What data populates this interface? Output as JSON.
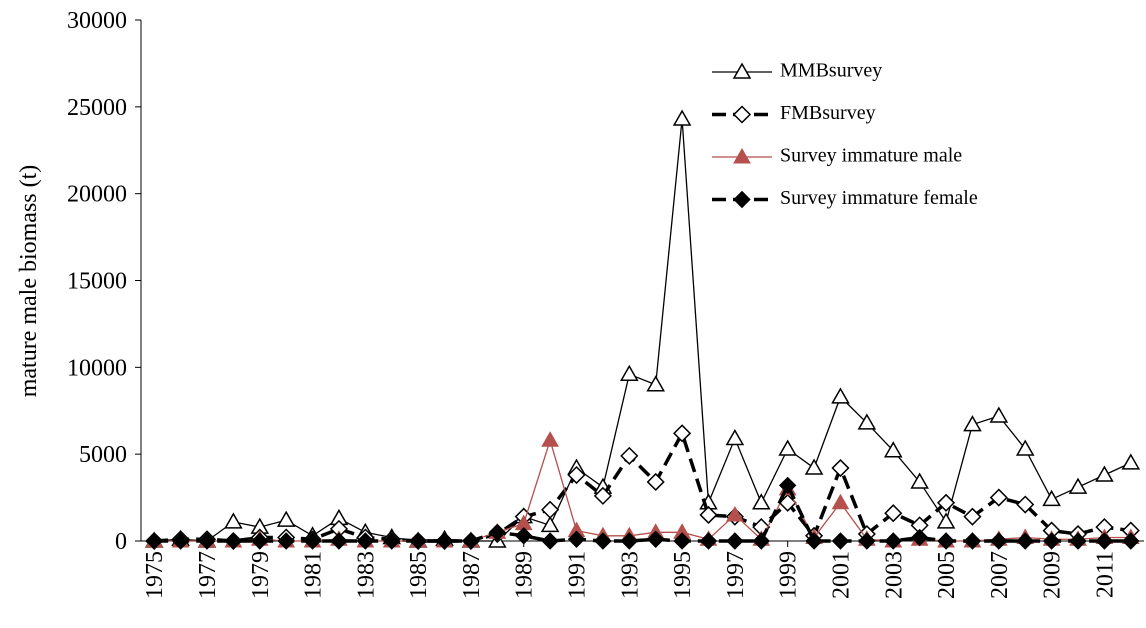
{
  "chart_data": {
    "type": "line",
    "y_label": "mature male biomass (t)",
    "x": [
      1975,
      1976,
      1977,
      1978,
      1979,
      1980,
      1981,
      1982,
      1983,
      1984,
      1985,
      1986,
      1987,
      1988,
      1989,
      1990,
      1991,
      1992,
      1993,
      1994,
      1995,
      1996,
      1997,
      1998,
      1999,
      2000,
      2001,
      2002,
      2003,
      2004,
      2005,
      2006,
      2007,
      2008,
      2009,
      2010,
      2011,
      2012
    ],
    "xlim": [
      1974.5,
      2012.5
    ],
    "xticks": [
      1975,
      1977,
      1979,
      1981,
      1983,
      1985,
      1987,
      1989,
      1991,
      1993,
      1995,
      1997,
      1999,
      2001,
      2003,
      2005,
      2007,
      2009,
      2011
    ],
    "ylim": [
      0,
      30000
    ],
    "yticks": [
      0,
      5000,
      10000,
      15000,
      20000,
      25000,
      30000
    ],
    "grid": false,
    "series": [
      {
        "name": "MMBsurvey",
        "color": "#000000",
        "marker": "triangle",
        "filled": false,
        "dash": false,
        "width": 1.3,
        "values": [
          0,
          100,
          0,
          1100,
          800,
          1200,
          300,
          1300,
          500,
          200,
          0,
          100,
          0,
          0,
          1400,
          900,
          4200,
          3100,
          9600,
          9000,
          24300,
          2200,
          5900,
          2200,
          5300,
          4200,
          8300,
          6800,
          5200,
          3400,
          1100,
          6700,
          7200,
          5300,
          2400,
          3100,
          3800,
          4500
        ]
      },
      {
        "name": "FMBsurvey",
        "color": "#000000",
        "marker": "diamond",
        "filled": false,
        "dash": true,
        "width": 3.5,
        "values": [
          0,
          100,
          100,
          0,
          200,
          200,
          100,
          700,
          200,
          100,
          0,
          0,
          0,
          400,
          1400,
          1800,
          3800,
          2600,
          4900,
          3400,
          6200,
          1500,
          1400,
          800,
          2200,
          300,
          4200,
          400,
          1600,
          900,
          2200,
          1400,
          2500,
          2100,
          600,
          400,
          800,
          600
        ]
      },
      {
        "name": "Survey immature male",
        "color": "#b5504c",
        "marker": "triangle",
        "filled": true,
        "dash": false,
        "width": 1.3,
        "values": [
          0,
          0,
          0,
          0,
          100,
          0,
          0,
          100,
          0,
          0,
          0,
          0,
          0,
          500,
          1000,
          5800,
          600,
          300,
          300,
          500,
          500,
          100,
          1500,
          100,
          3000,
          200,
          2200,
          100,
          0,
          100,
          0,
          0,
          100,
          200,
          100,
          100,
          200,
          200
        ]
      },
      {
        "name": "Survey immature female",
        "color": "#000000",
        "marker": "diamond",
        "filled": true,
        "dash": true,
        "width": 3.5,
        "values": [
          0,
          0,
          0,
          0,
          0,
          0,
          0,
          0,
          0,
          0,
          0,
          0,
          0,
          500,
          300,
          0,
          100,
          0,
          0,
          100,
          0,
          0,
          0,
          0,
          3200,
          0,
          0,
          0,
          0,
          200,
          0,
          0,
          0,
          0,
          0,
          0,
          0,
          0
        ]
      }
    ]
  }
}
